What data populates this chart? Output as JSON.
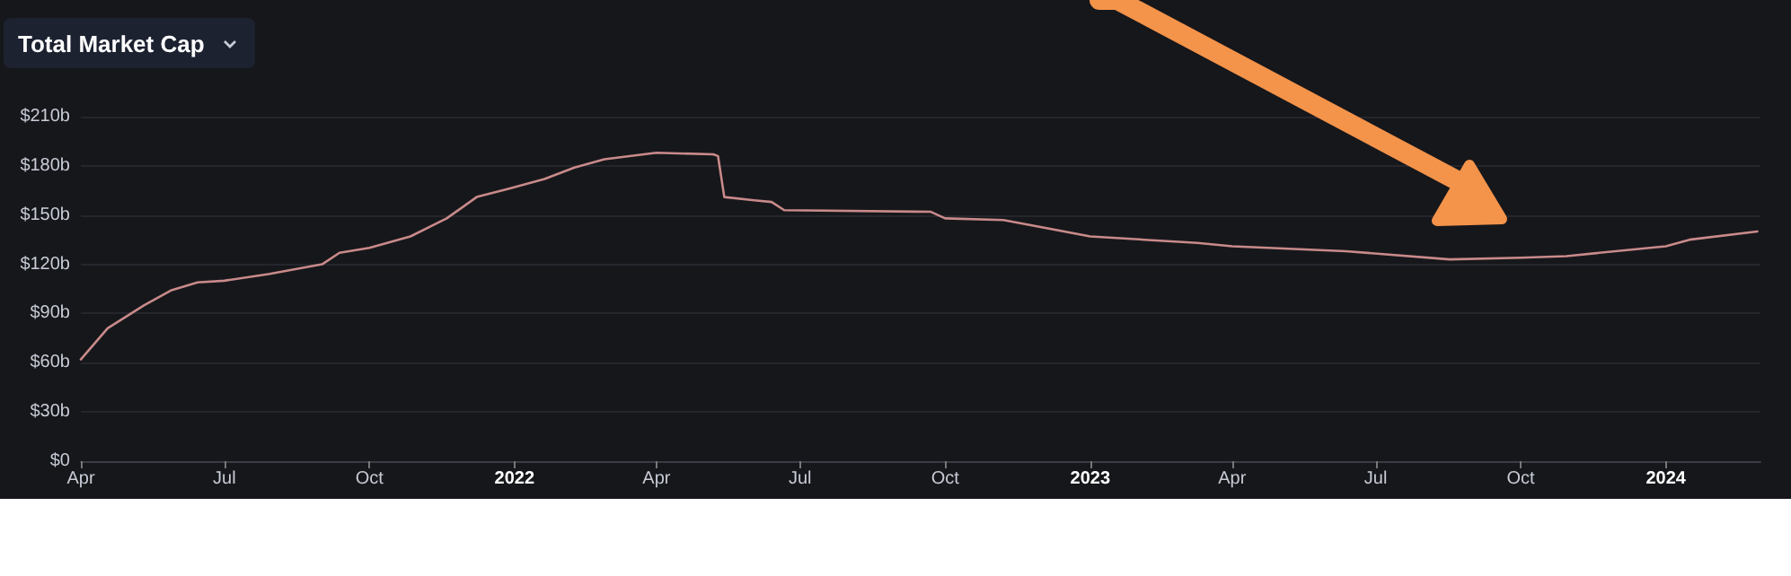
{
  "chart_data": {
    "type": "line",
    "title": "Total Market Cap",
    "x": [
      "2021-04-01",
      "2021-04-18",
      "2021-05-11",
      "2021-05-28",
      "2021-06-14",
      "2021-07-01",
      "2021-07-29",
      "2021-09-01",
      "2021-09-12",
      "2021-10-01",
      "2021-10-27",
      "2021-11-19",
      "2021-12-08",
      "2021-12-28",
      "2022-01-20",
      "2022-02-08",
      "2022-02-27",
      "2022-04-01",
      "2022-05-07",
      "2022-05-10",
      "2022-05-14",
      "2022-06-02",
      "2022-06-13",
      "2022-06-21",
      "2022-09-22",
      "2022-10-01",
      "2022-11-07",
      "2023-01-01",
      "2023-03-10",
      "2023-04-01",
      "2023-06-12",
      "2023-08-17",
      "2023-10-01",
      "2023-10-30",
      "2024-01-01",
      "2024-01-16",
      "2024-02-28"
    ],
    "series": [
      {
        "color": "#c98a8a",
        "values": [
          62,
          81,
          95,
          104,
          109,
          110,
          114,
          120,
          127,
          130,
          137,
          148,
          161,
          166,
          172,
          179,
          184,
          188,
          187,
          186,
          161,
          159,
          158,
          153,
          152,
          148,
          147,
          137,
          133,
          131,
          128,
          123,
          124,
          125,
          131,
          135,
          140
        ]
      }
    ],
    "xlim": [
      "2021-04-01",
      "2024-03-01"
    ],
    "xticks": [
      {
        "value": "2021-04-01",
        "label": "Apr"
      },
      {
        "value": "2021-07-01",
        "label": "Jul"
      },
      {
        "value": "2021-10-01",
        "label": "Oct"
      },
      {
        "value": "2022-01-01",
        "label": "2022"
      },
      {
        "value": "2022-04-01",
        "label": "Apr"
      },
      {
        "value": "2022-07-01",
        "label": "Jul"
      },
      {
        "value": "2022-10-01",
        "label": "Oct"
      },
      {
        "value": "2023-01-01",
        "label": "2023"
      },
      {
        "value": "2023-04-01",
        "label": "Apr"
      },
      {
        "value": "2023-07-01",
        "label": "Jul"
      },
      {
        "value": "2023-10-01",
        "label": "Oct"
      },
      {
        "value": "2024-01-01",
        "label": "2024"
      }
    ],
    "ylim": [
      0,
      210
    ],
    "yticks": [
      {
        "value": 0,
        "label": "$0"
      },
      {
        "value": 30,
        "label": "$30b"
      },
      {
        "value": 60,
        "label": "$60b"
      },
      {
        "value": 90,
        "label": "$90b"
      },
      {
        "value": 120,
        "label": "$120b"
      },
      {
        "value": 150,
        "label": "$150b"
      },
      {
        "value": 180,
        "label": "$180b"
      },
      {
        "value": 210,
        "label": "$210b"
      }
    ],
    "grid": "y",
    "marker": "none",
    "line_style": "solid"
  }
}
